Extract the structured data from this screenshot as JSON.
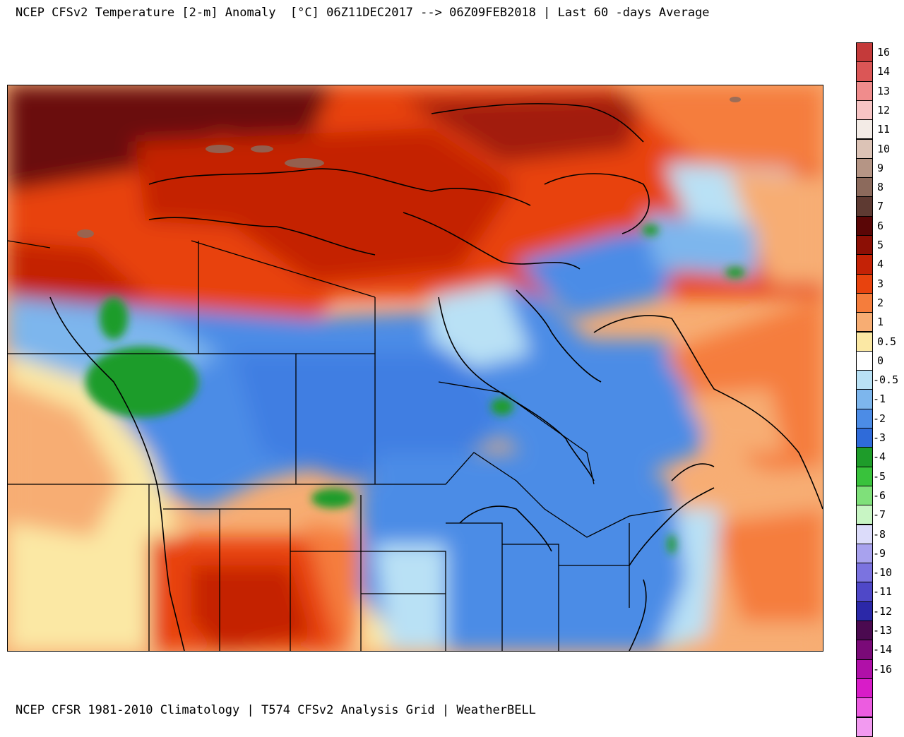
{
  "header": {
    "title": "NCEP CFSv2 Temperature [2-m] Anomaly  [°C] 06Z11DEC2017 --> 06Z09FEB2018 | Last 60 -days Average"
  },
  "footer": {
    "text": "NCEP CFSR 1981-2010 Climatology | T574 CFSv2 Analysis Grid | WeatherBELL"
  },
  "legend": {
    "items": [
      {
        "label": "16",
        "color": "#c43a3a"
      },
      {
        "label": "14",
        "color": "#db5656"
      },
      {
        "label": "13",
        "color": "#f08c8c"
      },
      {
        "label": "12",
        "color": "#f7c4c4"
      },
      {
        "label": "11",
        "color": "#f3ebe6"
      },
      {
        "label": "10",
        "color": "#dcc3b6"
      },
      {
        "label": "9",
        "color": "#b59585"
      },
      {
        "label": "8",
        "color": "#8c6a5c"
      },
      {
        "label": "7",
        "color": "#5e3a32"
      },
      {
        "label": "6",
        "color": "#5a0606"
      },
      {
        "label": "5",
        "color": "#8c0f05"
      },
      {
        "label": "4",
        "color": "#c42206"
      },
      {
        "label": "3",
        "color": "#e8430e"
      },
      {
        "label": "2",
        "color": "#f57d3c"
      },
      {
        "label": "1",
        "color": "#f7ad73"
      },
      {
        "label": "0.5",
        "color": "#fbe8a4"
      },
      {
        "label": "0",
        "color": "#ffffff"
      },
      {
        "label": "-0.5",
        "color": "#b9e1f5"
      },
      {
        "label": "-1",
        "color": "#7db6ed"
      },
      {
        "label": "-2",
        "color": "#4c8ce6"
      },
      {
        "label": "-3",
        "color": "#2f6bd9"
      },
      {
        "label": "-4",
        "color": "#1e9c2a"
      },
      {
        "label": "-5",
        "color": "#39c23c"
      },
      {
        "label": "-6",
        "color": "#7fe07a"
      },
      {
        "label": "-7",
        "color": "#c8f5c4"
      },
      {
        "label": "-8",
        "color": "#dcdcfa"
      },
      {
        "label": "-9",
        "color": "#a8a2ee"
      },
      {
        "label": "-10",
        "color": "#7b73e0"
      },
      {
        "label": "-11",
        "color": "#4f48c8"
      },
      {
        "label": "-12",
        "color": "#2b28a8"
      },
      {
        "label": "-13",
        "color": "#4b0a50"
      },
      {
        "label": "-14",
        "color": "#7a0a78"
      },
      {
        "label": "-16",
        "color": "#b010a8"
      }
    ],
    "extra_swatches": [
      "#d81cc8",
      "#ec5ce0",
      "#f29af0"
    ]
  }
}
